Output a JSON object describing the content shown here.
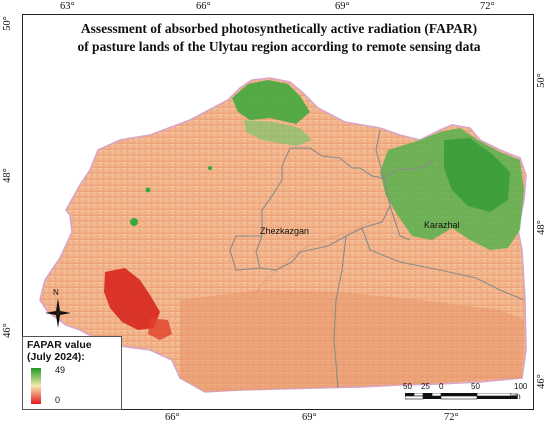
{
  "title": {
    "line1": "Assessment of absorbed photosynthetically active radiation (FAPAR)",
    "line2": "of pasture lands of the Ulytau region according to remote sensing data"
  },
  "grid": {
    "top_longitudes": [
      "63°",
      "66°",
      "69°",
      "72°"
    ],
    "bottom_longitudes": [
      "66°",
      "69°",
      "72°"
    ],
    "left_latitudes": [
      "50°",
      "48°",
      "46°"
    ],
    "right_latitudes": [
      "50°",
      "48°",
      "46°"
    ]
  },
  "places": {
    "zhezkazgan": "Zhezkazgan",
    "karazhal": "Karazhal"
  },
  "north_arrow": {
    "label": "N"
  },
  "legend": {
    "title_line1": "FAPAR value",
    "title_line2": "(July 2024):",
    "max": "49",
    "min": "0",
    "colors": {
      "high": "#1f9a1f",
      "mid": "#f5e8b0",
      "low": "#e41a1c"
    }
  },
  "scale": {
    "labels": [
      "50",
      "25",
      "0",
      "50",
      "100"
    ],
    "unit": "km"
  },
  "colors": {
    "region_base": "#f2b48a",
    "region_dark": "#e8956a",
    "vegetation": "#3aa83a",
    "boundary": "#888888",
    "outline": "#d8a6c8"
  }
}
